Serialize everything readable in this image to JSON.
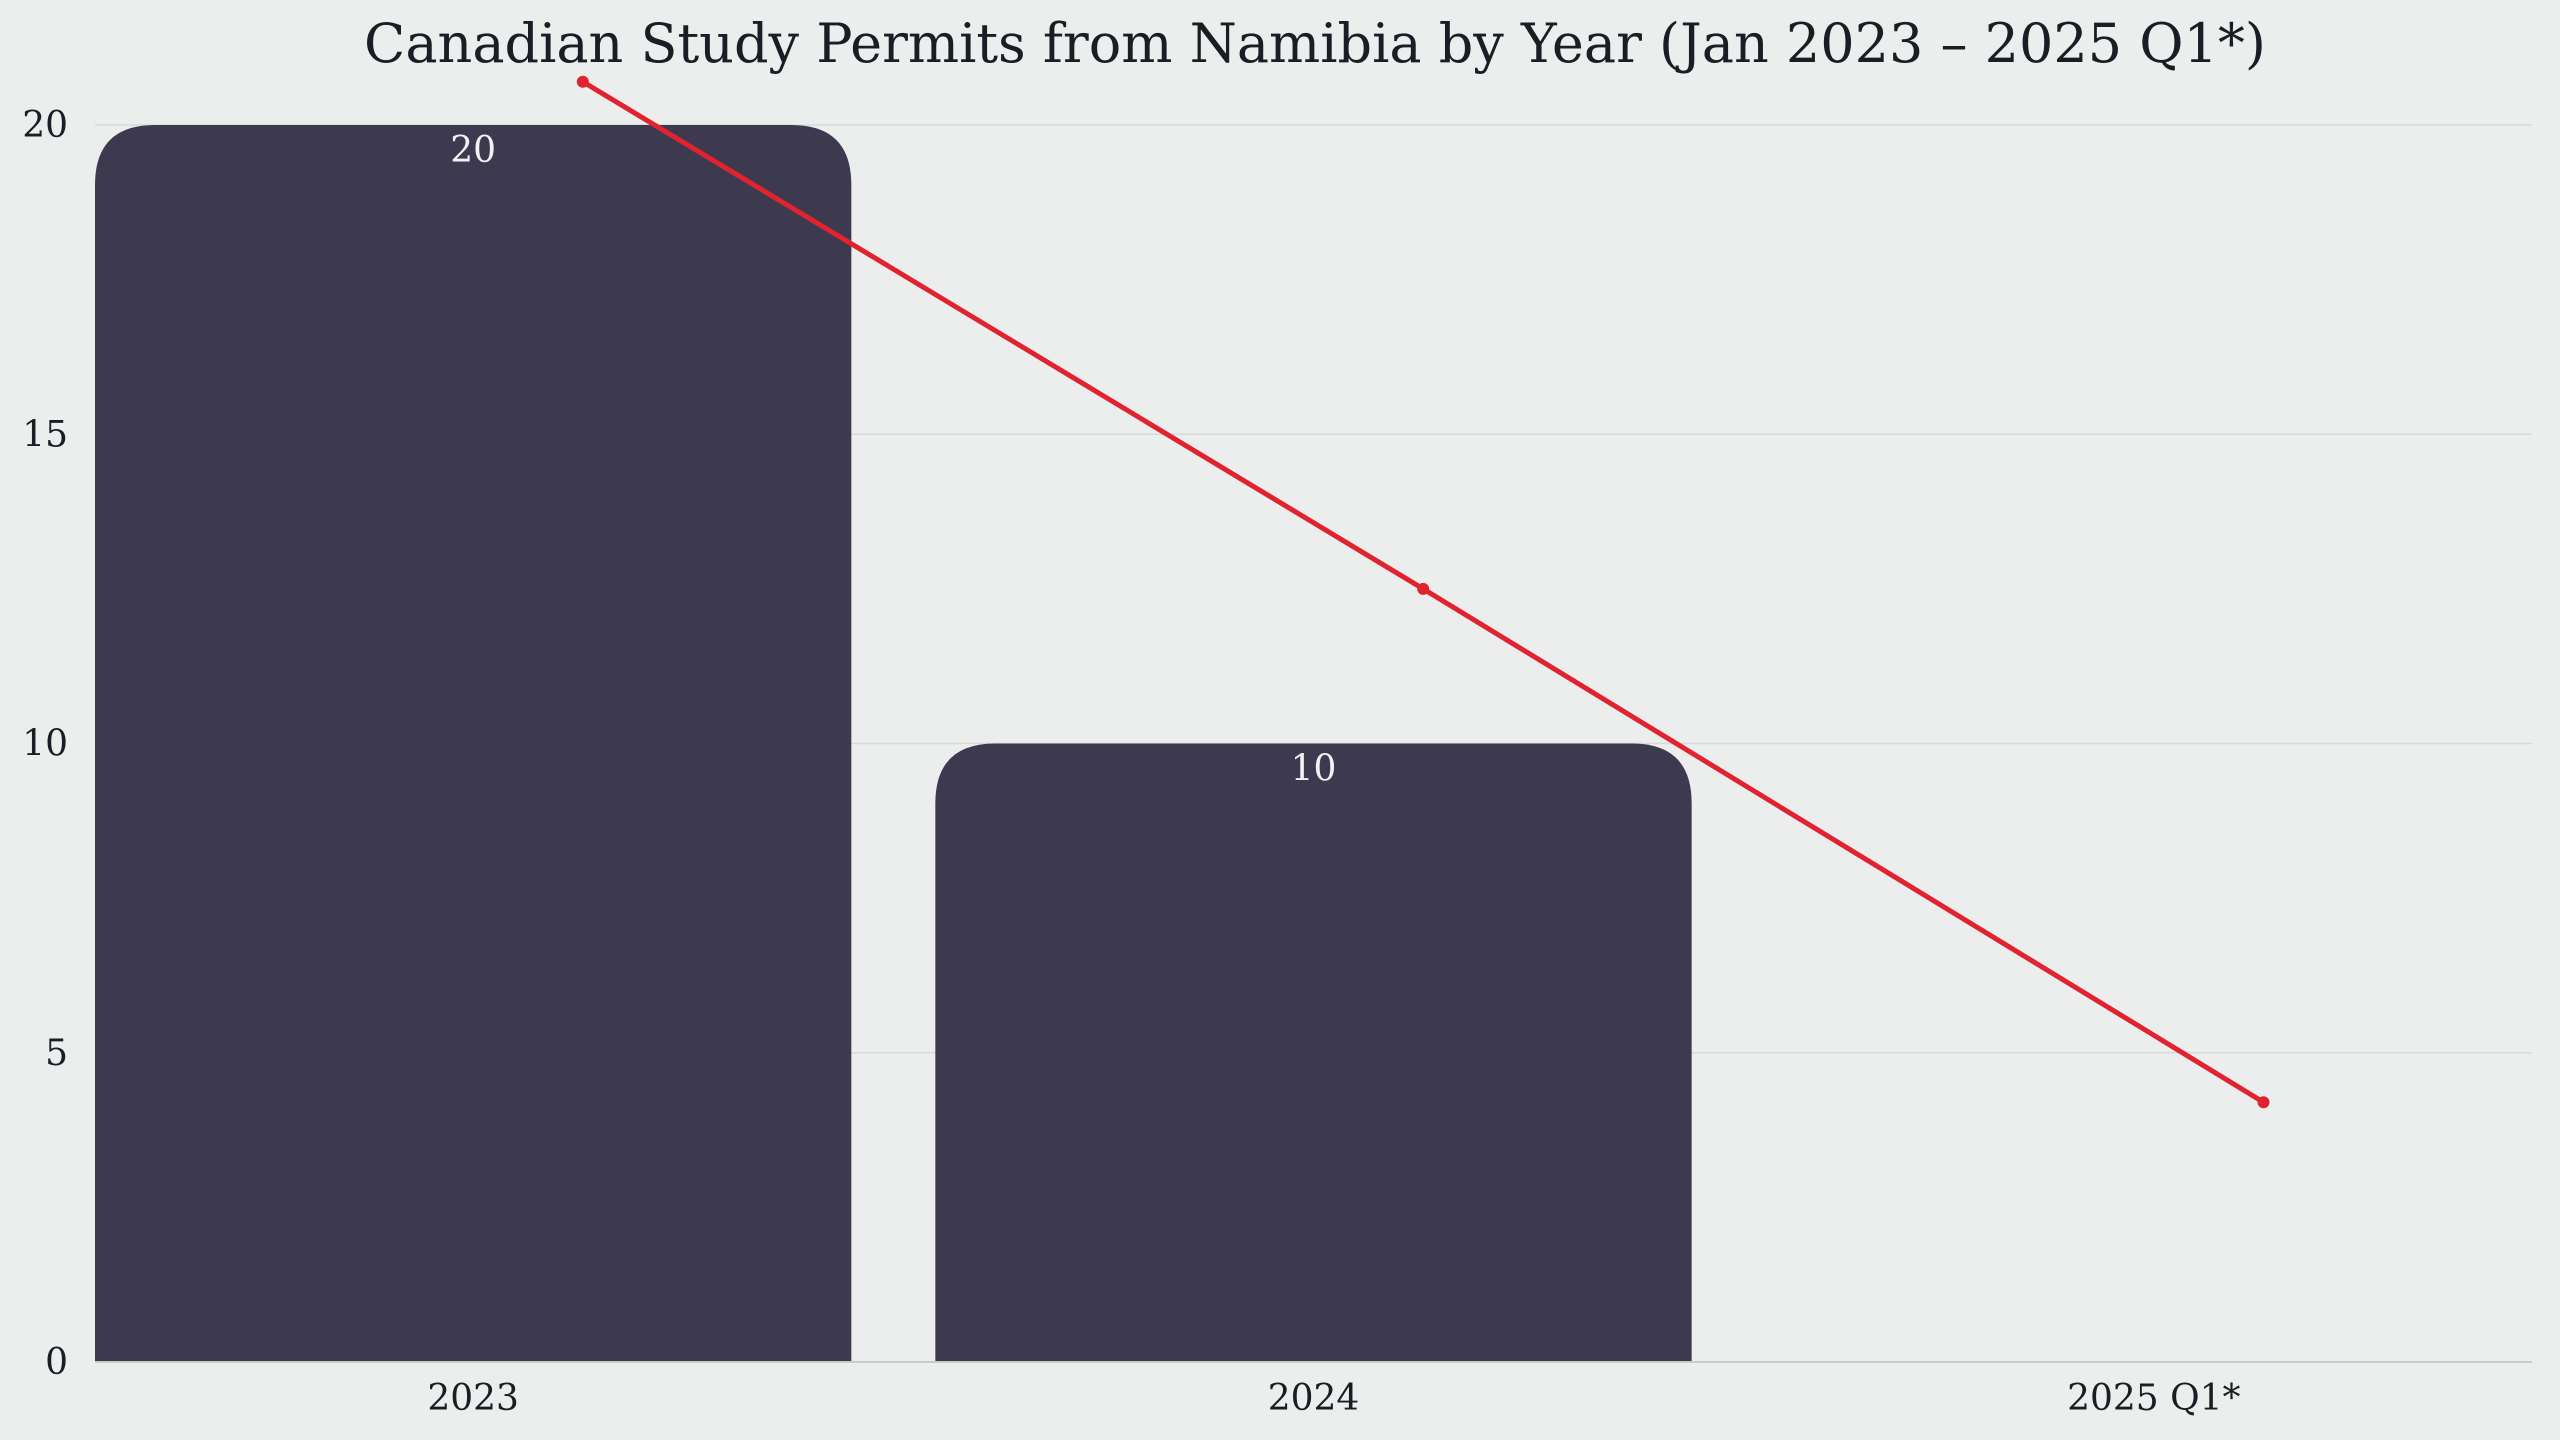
{
  "chart_data": {
    "type": "bar",
    "title": "Canadian Study Permits from Namibia by Year (Jan 2023 – 2025 Q1*)",
    "categories": [
      "2023",
      "2024",
      "2025 Q1*"
    ],
    "values": [
      20,
      10,
      0
    ],
    "bar_labels": [
      "20",
      "10",
      ""
    ],
    "trend_line": {
      "type": "line",
      "values": [
        20.7,
        12.5,
        4.2
      ],
      "color": "#e0232e"
    },
    "ylim": [
      0,
      20
    ],
    "yticks": [
      0,
      5,
      10,
      15,
      20
    ],
    "xlabel": "",
    "ylabel": "",
    "grid": true,
    "legend": "none",
    "colors": {
      "bar": "#3d3a50",
      "background": "#ebeeed",
      "trend": "#e0232e"
    }
  }
}
